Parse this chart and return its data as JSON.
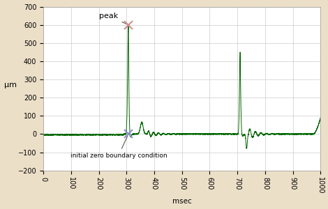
{
  "xlabel": "msec",
  "ylabel": "μm",
  "xlim": [
    0,
    1000
  ],
  "ylim": [
    -200,
    700
  ],
  "xticks": [
    0,
    100,
    200,
    300,
    400,
    500,
    600,
    700,
    800,
    900,
    1000
  ],
  "yticks": [
    -200,
    -100,
    0,
    100,
    200,
    300,
    400,
    500,
    600,
    700
  ],
  "line_color": "#006600",
  "background_color": "#ecdfc8",
  "plot_bg_color": "#ffffff",
  "grid_color": "#cccccc",
  "peak_x": 307,
  "peak_y": 600,
  "zero_x": 307,
  "zero_y": 0,
  "annotation_peak": "peak",
  "annotation_zero": "initial zero boundary condition",
  "x_marker_color_peak": "#d09090",
  "x_marker_color_zero": "#9090cc"
}
